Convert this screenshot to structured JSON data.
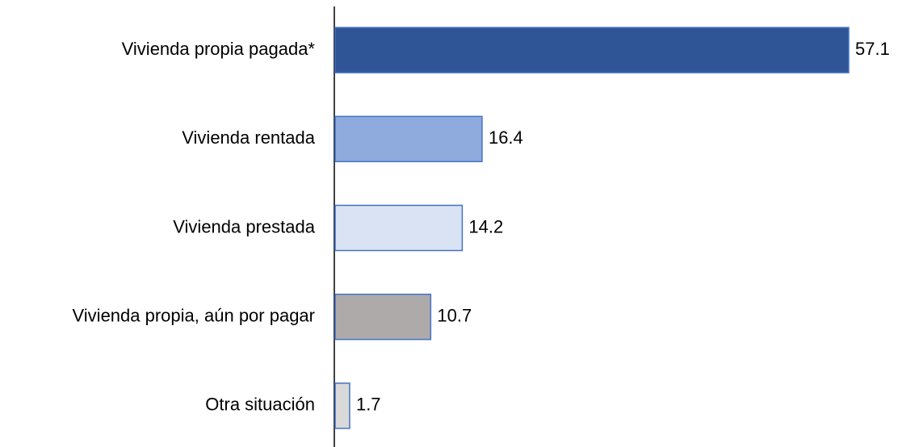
{
  "chart_data": {
    "type": "barh",
    "categories": [
      "Vivienda propia pagada*",
      "Vivienda rentada",
      "Vivienda prestada",
      "Vivienda propia, aún por pagar",
      "Otra situación"
    ],
    "values": [
      57.1,
      16.4,
      14.2,
      10.7,
      1.7
    ],
    "colors": [
      "#2f5597",
      "#8faadc",
      "#dae3f3",
      "#aeaaaa",
      "#d9d9d9"
    ],
    "edgecolor": "#4472c4"
  }
}
